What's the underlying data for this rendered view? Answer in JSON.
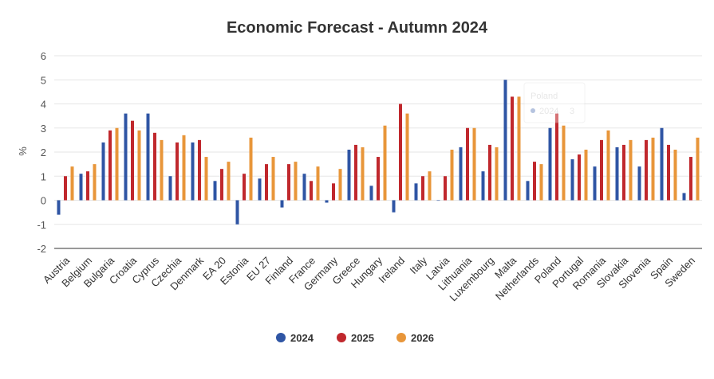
{
  "chart_data": {
    "type": "bar",
    "title": "Economic Forecast - Autumn 2024",
    "xlabel": "",
    "ylabel": "%",
    "ylim": [
      -2,
      6
    ],
    "yticks": [
      "-2",
      "-1",
      "0",
      "1",
      "2",
      "3",
      "4",
      "5",
      "6"
    ],
    "grid": true,
    "legend_position": "bottom",
    "categories": [
      "Austria",
      "Belgium",
      "Bulgaria",
      "Croatia",
      "Cyprus",
      "Czechia",
      "Denmark",
      "EA 20",
      "Estonia",
      "EU 27",
      "Finland",
      "France",
      "Germany",
      "Greece",
      "Hungary",
      "Ireland",
      "Italy",
      "Latvia",
      "Lithuania",
      "Luxembourg",
      "Malta",
      "Netherlands",
      "Poland",
      "Portugal",
      "Romania",
      "Slovakia",
      "Slovenia",
      "Spain",
      "Sweden"
    ],
    "series": [
      {
        "name": "2024",
        "color": "#2f55a4",
        "values": [
          -0.6,
          1.1,
          2.4,
          3.6,
          3.6,
          1.0,
          2.4,
          0.8,
          -1.0,
          0.9,
          -0.3,
          1.1,
          -0.1,
          2.1,
          0.6,
          -0.5,
          0.7,
          0.0,
          2.2,
          1.2,
          5.0,
          0.8,
          3.0,
          1.7,
          1.4,
          2.2,
          1.4,
          3.0,
          0.3
        ]
      },
      {
        "name": "2025",
        "color": "#c0282d",
        "values": [
          1.0,
          1.2,
          2.9,
          3.3,
          2.8,
          2.4,
          2.5,
          1.3,
          1.1,
          1.5,
          1.5,
          0.8,
          0.7,
          2.3,
          1.8,
          4.0,
          1.0,
          1.0,
          3.0,
          2.3,
          4.3,
          1.6,
          3.6,
          1.9,
          2.5,
          2.3,
          2.5,
          2.3,
          1.8
        ]
      },
      {
        "name": "2026",
        "color": "#e8963a",
        "values": [
          1.4,
          1.5,
          3.0,
          2.9,
          2.5,
          2.7,
          1.8,
          1.6,
          2.6,
          1.8,
          1.6,
          1.4,
          1.3,
          2.2,
          3.1,
          3.6,
          1.2,
          2.1,
          3.0,
          2.2,
          4.3,
          1.5,
          3.1,
          2.1,
          2.9,
          2.5,
          2.6,
          2.1,
          2.6
        ]
      }
    ],
    "tooltip": {
      "category": "Poland",
      "series": "2024",
      "value": "3"
    }
  }
}
